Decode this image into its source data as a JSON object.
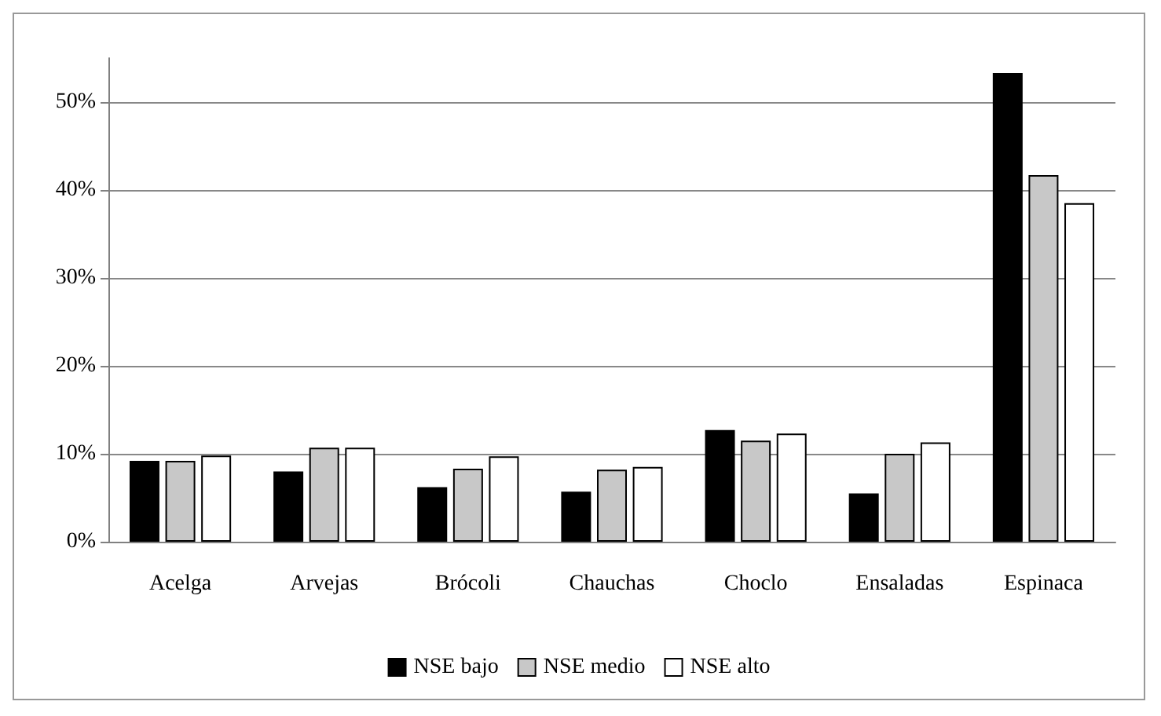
{
  "chart_data": {
    "type": "bar",
    "categories": [
      "Acelga",
      "Arvejas",
      "Brócoli",
      "Chauchas",
      "Choclo",
      "Ensaladas",
      "Espinaca"
    ],
    "series": [
      {
        "name": "NSE bajo",
        "color": "#000000",
        "values": [
          9.2,
          8.0,
          6.2,
          5.7,
          12.7,
          5.5,
          53.3
        ]
      },
      {
        "name": "NSE medio",
        "color": "#c8c8c8",
        "values": [
          9.2,
          10.7,
          8.3,
          8.2,
          11.5,
          10.0,
          41.7
        ]
      },
      {
        "name": "NSE alto",
        "color": "#ffffff",
        "values": [
          9.8,
          10.7,
          9.7,
          8.5,
          12.3,
          11.3,
          38.5
        ]
      }
    ],
    "ylim": [
      0,
      55
    ],
    "yticks": [
      {
        "value": 0,
        "label": "0%"
      },
      {
        "value": 10,
        "label": "10%"
      },
      {
        "value": 20,
        "label": "20%"
      },
      {
        "value": 30,
        "label": "30%"
      },
      {
        "value": 40,
        "label": "40%"
      },
      {
        "value": 50,
        "label": "50%"
      }
    ],
    "grid": "y",
    "legend": "bottom"
  }
}
